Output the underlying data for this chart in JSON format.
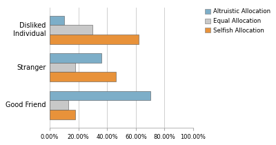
{
  "categories": [
    "Good Friend",
    "Stranger",
    "Disliked\nIndividual"
  ],
  "series": {
    "Altruistic Allocation": [
      0.7,
      0.36,
      0.1
    ],
    "Equal Allocation": [
      0.13,
      0.18,
      0.3
    ],
    "Selfish Allocation": [
      0.18,
      0.46,
      0.62
    ]
  },
  "colors": {
    "Altruistic Allocation": "#7daec8",
    "Equal Allocation": "#c8c8c8",
    "Selfish Allocation": "#e8923a"
  },
  "bar_edge_color": "#555555",
  "xlim": [
    0,
    1.0
  ],
  "xtick_labels": [
    "0.00%",
    "20.00%",
    "40.00%",
    "60.00%",
    "80.00%",
    "100.00%"
  ],
  "xtick_values": [
    0.0,
    0.2,
    0.4,
    0.6,
    0.8,
    1.0
  ],
  "legend_order": [
    "Altruistic Allocation",
    "Equal Allocation",
    "Selfish Allocation"
  ],
  "bar_height": 0.25,
  "figsize": [
    4.0,
    2.1
  ],
  "dpi": 100
}
